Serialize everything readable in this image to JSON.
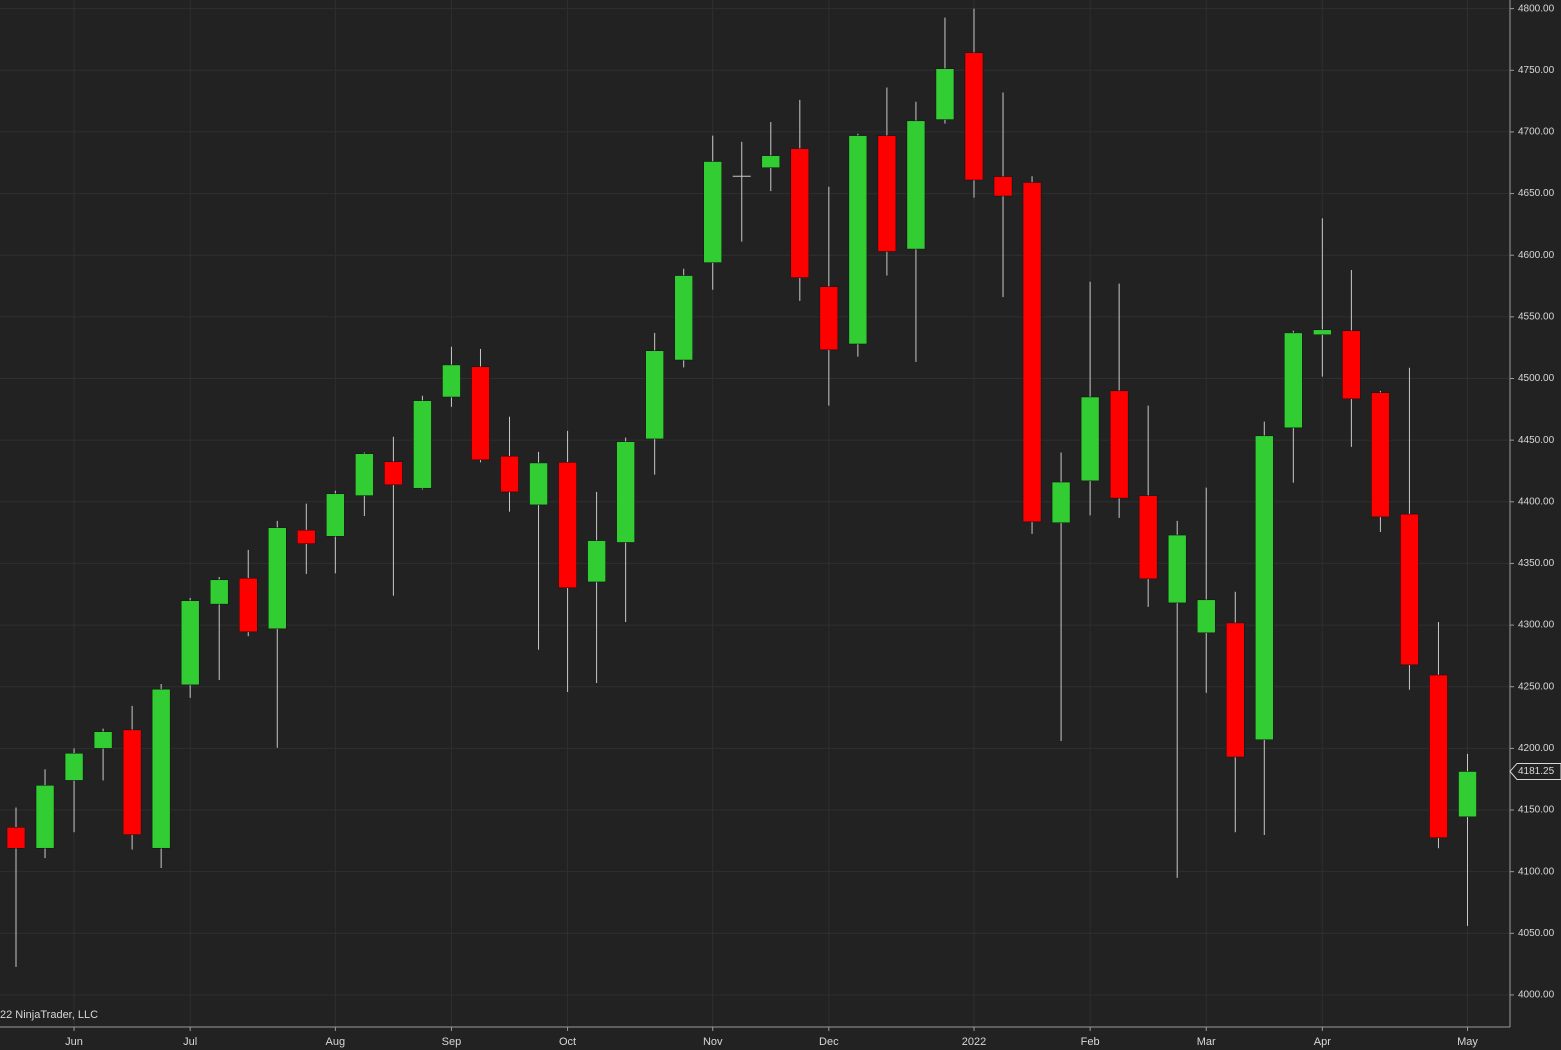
{
  "chart_data": {
    "type": "candlestick",
    "watermark": "22 NinjaTrader, LLC",
    "categories": [
      null,
      null,
      "Jun",
      null,
      null,
      null,
      "Jul",
      null,
      null,
      null,
      null,
      "Aug",
      null,
      null,
      null,
      "Sep",
      null,
      null,
      null,
      "Oct",
      null,
      null,
      null,
      null,
      "Nov",
      null,
      null,
      null,
      "Dec",
      null,
      null,
      null,
      null,
      "2022",
      null,
      null,
      null,
      "Feb",
      null,
      null,
      null,
      "Mar",
      null,
      null,
      null,
      "Apr",
      null,
      null,
      null,
      null,
      "May"
    ],
    "open": [
      4136,
      4119,
      4174,
      4200,
      4215,
      4119,
      4251.5,
      4317,
      4338,
      4297,
      4377,
      4372,
      4405,
      4432.5,
      4411,
      4485,
      4509.5,
      4437,
      4397.5,
      4432,
      4335,
      4367,
      4451,
      4515,
      4594,
      4664,
      4671,
      4686.5,
      4574.5,
      4528,
      4697,
      4605,
      4710,
      4764.25,
      4663.75,
      4659,
      4383,
      4417,
      4490,
      4405,
      4318,
      4293.75,
      4301.75,
      4207,
      4460,
      4535.5,
      4538.75,
      4488.5,
      4390,
      4259.5,
      4144.5
    ],
    "high": [
      4152,
      4183,
      4200,
      4216,
      4234.5,
      4252.25,
      4322,
      4339,
      4361,
      4384.5,
      4398.5,
      4409,
      4440,
      4452.75,
      4486,
      4525.75,
      4524,
      4469,
      4440.5,
      4457.5,
      4408,
      4452,
      4537,
      4589,
      4697,
      4692,
      4708,
      4726,
      4655.5,
      4698.5,
      4736,
      4724.5,
      4792.75,
      4800,
      4732,
      4664,
      4440,
      4578.5,
      4577,
      4478,
      4384.5,
      4411.5,
      4327,
      4465,
      4538.75,
      4630,
      4588,
      4490,
      4508.75,
      4302.5,
      4195.5
    ],
    "low": [
      4022.75,
      4111,
      4132,
      4174,
      4118,
      4103,
      4241,
      4255.5,
      4291,
      4200.5,
      4341.5,
      4342,
      4388.5,
      4323.75,
      4410,
      4477,
      4432,
      4392,
      4280,
      4245.75,
      4253,
      4302.5,
      4422,
      4509,
      4572,
      4611,
      4652,
      4563,
      4478,
      4517.75,
      4583.5,
      4513.5,
      4706.75,
      4646.75,
      4566,
      4374,
      4206,
      4389,
      4387,
      4314.75,
      4095,
      4245,
      4132,
      4129.75,
      4415.5,
      4501.5,
      4444.5,
      4375.5,
      4247.5,
      4119,
      4056
    ],
    "close": [
      4119,
      4170,
      4196,
      4213.5,
      4130,
      4248,
      4319.75,
      4336.75,
      4294.5,
      4379,
      4366,
      4406.5,
      4439,
      4413.75,
      4482,
      4511,
      4434,
      4408,
      4431.5,
      4330.25,
      4368.5,
      4448.75,
      4522.5,
      4583.5,
      4676,
      4664,
      4680.75,
      4581.75,
      4523.25,
      4697,
      4603,
      4709,
      4751.25,
      4661,
      4648,
      4383.75,
      4416,
      4485,
      4403,
      4337.5,
      4373,
      4320.5,
      4193,
      4453.5,
      4537,
      4539.5,
      4483.5,
      4387.75,
      4267.75,
      4127.5,
      4181.25
    ],
    "up_color": "#32cd32",
    "down_color": "#ff0000",
    "wick_color": "#c8c8c8",
    "ylim": [
      3974,
      4807
    ],
    "yticks": [
      {
        "value": 4000,
        "label": "4000.00"
      },
      {
        "value": 4050,
        "label": "4050.00"
      },
      {
        "value": 4100,
        "label": "4100.00"
      },
      {
        "value": 4150,
        "label": "4150.00"
      },
      {
        "value": 4200,
        "label": "4200.00"
      },
      {
        "value": 4250,
        "label": "4250.00"
      },
      {
        "value": 4300,
        "label": "4300.00"
      },
      {
        "value": 4350,
        "label": "4350.00"
      },
      {
        "value": 4400,
        "label": "4400.00"
      },
      {
        "value": 4450,
        "label": "4450.00"
      },
      {
        "value": 4500,
        "label": "4500.00"
      },
      {
        "value": 4550,
        "label": "4550.00"
      },
      {
        "value": 4600,
        "label": "4600.00"
      },
      {
        "value": 4650,
        "label": "4650.00"
      },
      {
        "value": 4700,
        "label": "4700.00"
      },
      {
        "value": 4750,
        "label": "4750.00"
      },
      {
        "value": 4800,
        "label": "4800.00"
      }
    ],
    "grid": true
  }
}
